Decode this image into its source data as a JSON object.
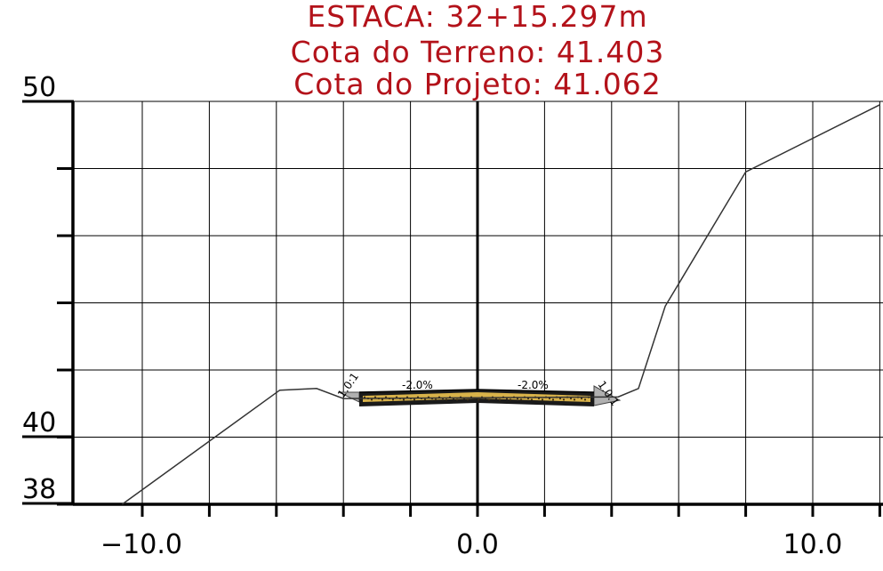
{
  "header": {
    "station": "ESTACA: 32+15.297m",
    "ground_elevation": "Cota do Terreno:  41.403",
    "design_elevation": "Cota do Projeto: 41.062"
  },
  "axes": {
    "y_top_label": "50",
    "y_mid_label": "40",
    "y_bottom_label": "38",
    "x_labels": [
      "−10.0",
      "0.0",
      "10.0"
    ],
    "x_range": [
      -12,
      12
    ],
    "y_range": [
      38,
      50
    ],
    "x_grid_step": 2,
    "y_grid_step": 2
  },
  "annotations": {
    "slope_left": "-2.0%",
    "slope_right": "-2.0%",
    "cut_fill_left": "1.0:1",
    "cut_fill_right": "1.0:1"
  },
  "chart_data": {
    "type": "line",
    "title": "ESTACA: 32+15.297m",
    "xlim": [
      -12,
      12
    ],
    "ylim": [
      38,
      50
    ],
    "grid": true,
    "series": [
      {
        "points": [
          [
            -10.6,
            38.0
          ],
          [
            -5.9,
            41.4
          ],
          [
            -4.8,
            41.45
          ],
          [
            -4.0,
            41.15
          ],
          [
            4.2,
            41.2
          ],
          [
            4.8,
            41.45
          ],
          [
            5.6,
            43.9
          ],
          [
            8.0,
            47.9
          ],
          [
            12.0,
            49.9
          ]
        ]
      }
    ],
    "design_section": {
      "crown": [
        0.0,
        41.062
      ],
      "half_width": 3.5,
      "cross_slope_percent": -2.0,
      "side_slope_ratio": "1.0:1"
    },
    "colors": {
      "title": "#b3121a",
      "terrain": "#333333",
      "grid": "#000000",
      "pavement": "#d8b24a",
      "base": "#1a1a1a",
      "slope_fill": "#b0b0b0"
    }
  }
}
